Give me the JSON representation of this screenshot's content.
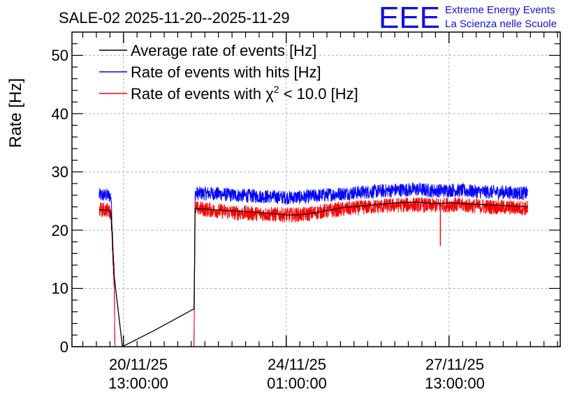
{
  "chart_data": {
    "type": "line",
    "title": "SALE-02 2025-11-20--2025-11-29",
    "ylabel": "Rate [Hz]",
    "xlabel": "",
    "ylim": [
      0,
      54
    ],
    "xlim_days": [
      0,
      9.0
    ],
    "yticks": [
      "0",
      "10",
      "20",
      "30",
      "40",
      "50"
    ],
    "xticks": [
      {
        "day": 0.95,
        "line1": "20/11/25",
        "line2": "13:00:00"
      },
      {
        "day": 3.95,
        "line1": "24/11/25",
        "line2": "01:00:00"
      },
      {
        "day": 6.95,
        "line1": "27/11/25",
        "line2": "13:00:00"
      }
    ],
    "grid": true,
    "legend_position": "top-left",
    "series": [
      {
        "name": "Average rate of events [Hz]",
        "color": "#000000",
        "x": [
          0.5,
          0.65,
          0.72,
          0.78,
          0.93,
          1.5,
          2.25,
          2.26,
          2.27,
          2.35,
          2.6,
          3.0,
          3.5,
          4.0,
          4.3,
          4.6,
          5.0,
          5.5,
          6.0,
          6.4,
          6.6,
          6.8,
          7.0,
          7.5,
          8.0,
          8.4
        ],
        "values": [
          23.5,
          23.5,
          23.0,
          12.0,
          0.0,
          2.7,
          6.5,
          14.0,
          23.7,
          23.7,
          23.5,
          23.3,
          23.0,
          22.6,
          22.7,
          23.2,
          23.9,
          24.3,
          24.7,
          24.8,
          24.6,
          24.6,
          24.7,
          24.4,
          24.2,
          24.0
        ]
      },
      {
        "name": "Rate of events with hits [Hz]",
        "color": "#0000ff",
        "x": [
          0.5,
          0.65,
          0.72,
          0.78,
          0.79,
          2.25,
          2.26,
          2.27,
          2.35,
          2.6,
          3.0,
          3.5,
          4.0,
          4.3,
          4.6,
          5.0,
          5.5,
          6.0,
          6.4,
          6.6,
          6.8,
          7.0,
          7.5,
          8.0,
          8.4
        ],
        "values": [
          26.0,
          26.0,
          25.8,
          12.0,
          0.0,
          0.0,
          15.0,
          26.3,
          26.3,
          26.3,
          26.0,
          25.8,
          25.6,
          25.7,
          26.0,
          26.3,
          26.6,
          26.9,
          27.0,
          26.8,
          26.8,
          26.9,
          26.6,
          26.5,
          26.3
        ]
      },
      {
        "name": "Rate of events with χ² < 10.0 [Hz]",
        "color": "#ff0000",
        "x": [
          0.5,
          0.65,
          0.72,
          0.78,
          0.79,
          2.25,
          2.26,
          2.27,
          2.35,
          2.6,
          3.0,
          3.5,
          4.0,
          4.3,
          4.6,
          5.0,
          5.5,
          6.0,
          6.4,
          6.6,
          6.8,
          7.0,
          7.5,
          8.0,
          8.4
        ],
        "values": [
          23.5,
          23.5,
          23.0,
          10.0,
          0.0,
          0.0,
          13.0,
          23.7,
          23.7,
          23.4,
          23.0,
          22.8,
          22.6,
          22.7,
          23.2,
          23.6,
          24.0,
          24.3,
          24.4,
          24.2,
          24.3,
          24.4,
          24.1,
          23.9,
          23.8
        ],
        "dip": {
          "x": 6.79,
          "value": 17.3
        }
      }
    ],
    "noise_amplitude": {
      "blue": 1.2,
      "red": 1.3
    }
  },
  "logo": {
    "mark": "EEE",
    "line1": "Extreme Energy Events",
    "line2": "La Scienza nelle Scuole"
  },
  "legend": {
    "avg": "Average rate of events [Hz]",
    "hits": "Rate of events with hits [Hz]",
    "chi2_pre": "Rate of events with ",
    "chi2_sym": "χ",
    "chi2_sup": "2",
    "chi2_post": " < 10.0 [Hz]"
  },
  "colors": {
    "avg": "#000000",
    "hits": "#0000ff",
    "chi2": "#ff0000",
    "grid": "#b0b0b0",
    "logo": "#1010e0"
  }
}
